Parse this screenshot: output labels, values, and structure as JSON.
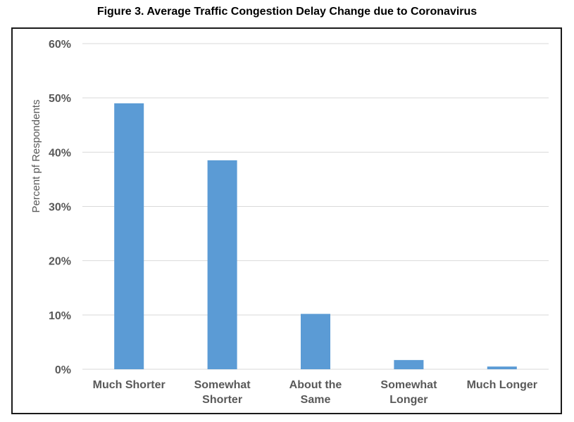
{
  "figure": {
    "title": "Figure 3.  Average Traffic Congestion Delay Change due to Coronavirus"
  },
  "chart_data": {
    "type": "bar",
    "title": "Figure 3.  Average Traffic Congestion Delay Change due to Coronavirus",
    "xlabel": "",
    "ylabel": "Percent pf Respondents",
    "categories": [
      [
        "Much Shorter"
      ],
      [
        "Somewhat",
        "Shorter"
      ],
      [
        "About the",
        "Same"
      ],
      [
        "Somewhat",
        "Longer"
      ],
      [
        "Much Longer"
      ]
    ],
    "values": [
      49.0,
      38.5,
      10.2,
      1.7,
      0.5
    ],
    "ylim": [
      0,
      60
    ],
    "yticks": [
      0,
      10,
      20,
      30,
      40,
      50,
      60
    ],
    "ytick_labels": [
      "0%",
      "10%",
      "20%",
      "30%",
      "40%",
      "50%",
      "60%"
    ],
    "grid": true,
    "legend": "none",
    "bar_color": "#5b9bd5",
    "grid_color": "#d9d9d9",
    "tick_label_color": "#595959"
  }
}
